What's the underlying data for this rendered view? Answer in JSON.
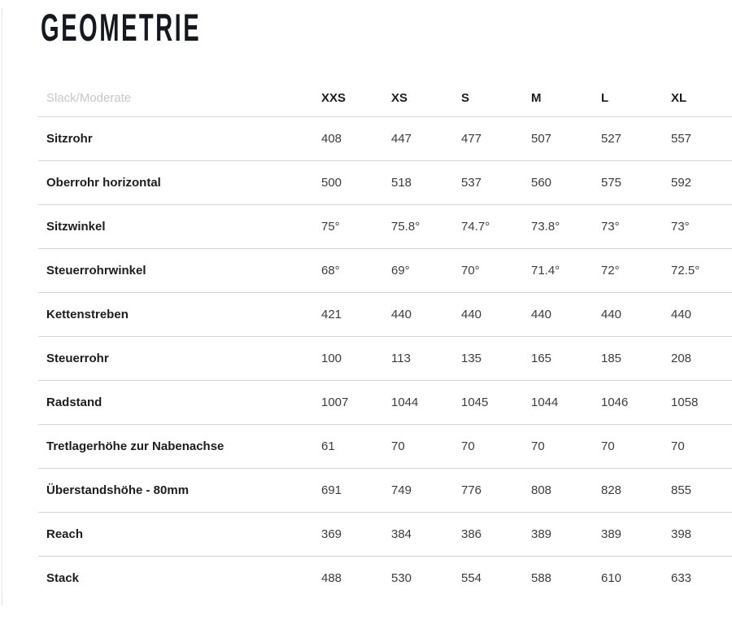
{
  "page": {
    "title": "GEOMETRIE"
  },
  "colors": {
    "title": "#15181e",
    "row_label": "#1d1d1d",
    "value_text": "#3c3c3c",
    "corner_label": "#c7c7c7",
    "separator_line": "#d5d5d5",
    "background": "#ffffff"
  },
  "table": {
    "corner_label": "Slack/Moderate",
    "columns": [
      "XXS",
      "XS",
      "S",
      "M",
      "L",
      "XL"
    ],
    "rows": [
      {
        "label": "Sitzrohr",
        "values": [
          "408",
          "447",
          "477",
          "507",
          "527",
          "557"
        ]
      },
      {
        "label": "Oberrohr horizontal",
        "values": [
          "500",
          "518",
          "537",
          "560",
          "575",
          "592"
        ]
      },
      {
        "label": "Sitzwinkel",
        "values": [
          "75°",
          "75.8°",
          "74.7°",
          "73.8°",
          "73°",
          "73°"
        ]
      },
      {
        "label": "Steuerrohrwinkel",
        "values": [
          "68°",
          "69°",
          "70°",
          "71.4°",
          "72°",
          "72.5°"
        ]
      },
      {
        "label": "Kettenstreben",
        "values": [
          "421",
          "440",
          "440",
          "440",
          "440",
          "440"
        ]
      },
      {
        "label": "Steuerrohr",
        "values": [
          "100",
          "113",
          "135",
          "165",
          "185",
          "208"
        ]
      },
      {
        "label": "Radstand",
        "values": [
          "1007",
          "1044",
          "1045",
          "1044",
          "1046",
          "1058"
        ]
      },
      {
        "label": "Tretlagerhöhe zur Nabenachse",
        "values": [
          "61",
          "70",
          "70",
          "70",
          "70",
          "70"
        ]
      },
      {
        "label": "Überstandshöhe - 80mm",
        "values": [
          "691",
          "749",
          "776",
          "808",
          "828",
          "855"
        ]
      },
      {
        "label": "Reach",
        "values": [
          "369",
          "384",
          "386",
          "389",
          "389",
          "398"
        ]
      },
      {
        "label": "Stack",
        "values": [
          "488",
          "530",
          "554",
          "588",
          "610",
          "633"
        ]
      }
    ]
  }
}
